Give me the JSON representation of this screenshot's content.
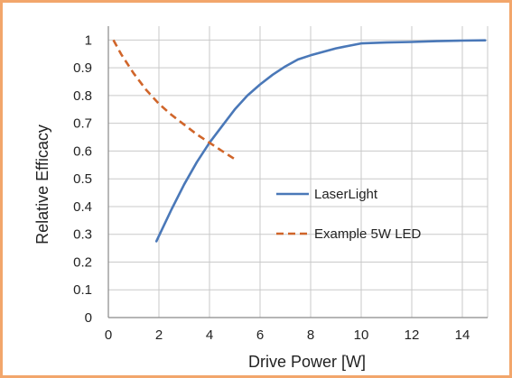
{
  "chart_data": {
    "type": "line",
    "xlabel": "Drive Power [W]",
    "ylabel": "Relative Efficacy",
    "xlim": [
      0,
      15
    ],
    "ylim": [
      0,
      1.05
    ],
    "x_ticks": [
      0,
      2,
      4,
      6,
      8,
      10,
      12,
      14
    ],
    "y_ticks": [
      0,
      0.1,
      0.2,
      0.3,
      0.4,
      0.5,
      0.6,
      0.7,
      0.8,
      0.9,
      1
    ],
    "y_tick_labels": [
      "0",
      "0.1",
      "0.2",
      "0.3",
      "0.4",
      "0.5",
      "0.6",
      "0.7",
      "0.8",
      "0.9",
      "1"
    ],
    "grid": true,
    "legend_position": "center-right",
    "series": [
      {
        "name": "LaserLight",
        "color": "#4a78b8",
        "style": "solid",
        "x": [
          1.9,
          2.5,
          3,
          3.5,
          4,
          4.5,
          5,
          5.5,
          6,
          6.5,
          7,
          7.5,
          8,
          9,
          10,
          11,
          12,
          13,
          14,
          14.9
        ],
        "y": [
          0.275,
          0.39,
          0.48,
          0.56,
          0.63,
          0.69,
          0.75,
          0.8,
          0.84,
          0.875,
          0.905,
          0.93,
          0.945,
          0.97,
          0.988,
          0.991,
          0.993,
          0.996,
          0.998,
          0.999
        ]
      },
      {
        "name": "Example 5W LED",
        "color": "#d0652a",
        "style": "dashed",
        "x": [
          0.2,
          0.5,
          1,
          1.5,
          2,
          2.5,
          3,
          3.5,
          4,
          4.5,
          5.1
        ],
        "y": [
          1.0,
          0.95,
          0.88,
          0.82,
          0.77,
          0.73,
          0.695,
          0.66,
          0.63,
          0.6,
          0.565
        ]
      }
    ]
  }
}
